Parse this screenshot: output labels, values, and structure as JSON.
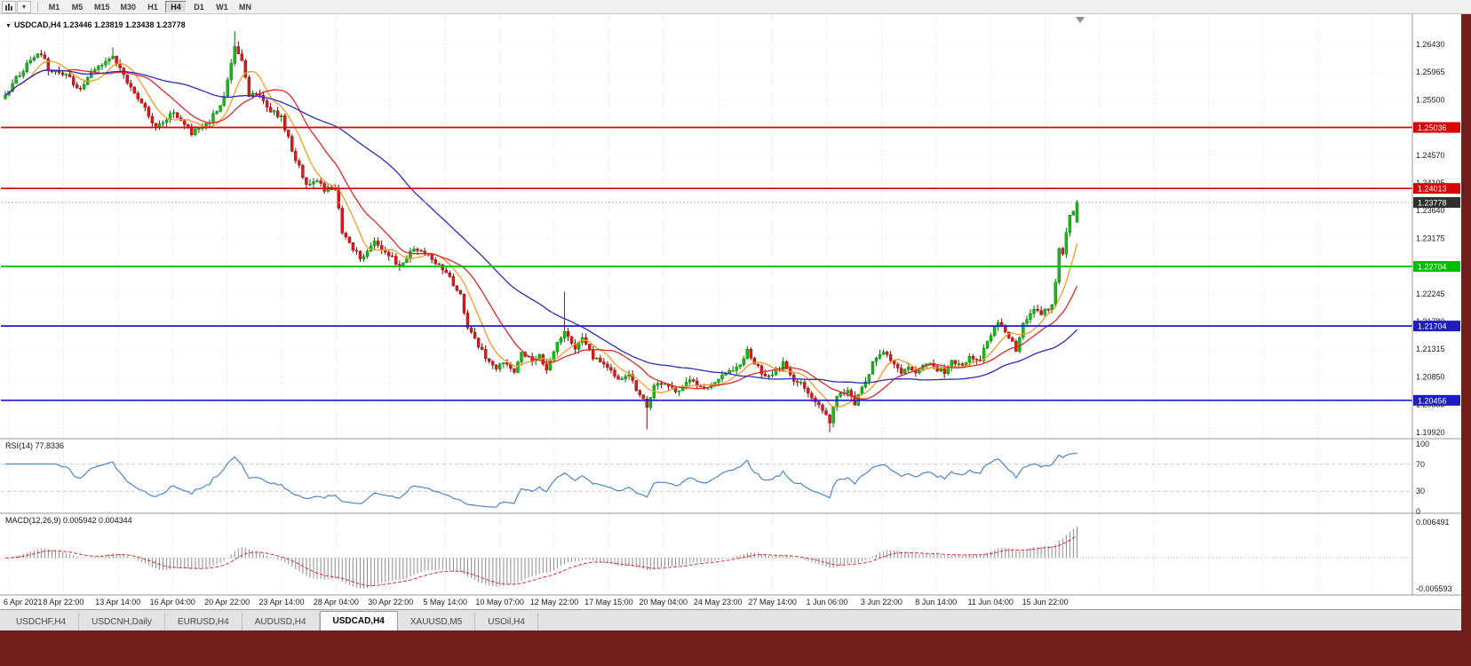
{
  "toolbar": {
    "timeframes": [
      "M1",
      "M5",
      "M15",
      "M30",
      "H1",
      "H4",
      "D1",
      "W1",
      "MN"
    ],
    "active_timeframe": "H4"
  },
  "chart_header": {
    "collapse_icon": "▼",
    "title": "USDCAD,H4  1.23446 1.23819 1.23438 1.23778"
  },
  "rsi_panel": {
    "label": "RSI(14) 77.8336",
    "current": 77.8336,
    "axis_values": [
      100,
      70,
      30,
      0
    ],
    "level_lines": [
      70,
      30
    ],
    "line_color": "#4d86c8"
  },
  "macd_panel": {
    "label": "MACD(12,26,9) 0.005942 0.004344",
    "macd_value": 0.005942,
    "signal_value": 0.004344,
    "axis_max": "0.006491",
    "axis_min": "-0.005593",
    "histogram_color": "#8c8c8c",
    "signal_color": "#e03030"
  },
  "price_axis": {
    "labels": [
      "1.26430",
      "1.25965",
      "1.25500",
      "1.25035",
      "1.24570",
      "1.24105",
      "1.23640",
      "1.23175",
      "1.22710",
      "1.22245",
      "1.21780",
      "1.21315",
      "1.20850",
      "1.20385",
      "1.19920"
    ]
  },
  "time_axis": {
    "labels": [
      "6 Apr 2021",
      "8 Apr 22:00",
      "13 Apr 14:00",
      "16 Apr 04:00",
      "20 Apr 22:00",
      "23 Apr 14:00",
      "28 Apr 04:00",
      "30 Apr 22:00",
      "5 May 14:00",
      "10 May 07:00",
      "12 May 22:00",
      "17 May 15:00",
      "20 May 04:00",
      "24 May 23:00",
      "27 May 14:00",
      "1 Jun 06:00",
      "3 Jun 22:00",
      "8 Jun 14:00",
      "11 Jun 04:00",
      "15 Jun 22:00"
    ]
  },
  "price_marker": {
    "value": 1.23778,
    "label": "1.23778",
    "bg": "#2f2f2f"
  },
  "hlines": [
    {
      "value": 1.25036,
      "label": "1.25036",
      "color": "#dd0000",
      "kind": "resistance"
    },
    {
      "value": 1.24013,
      "label": "1.24013",
      "color": "#dd0000",
      "kind": "resistance"
    },
    {
      "value": 1.22704,
      "label": "1.22704",
      "color": "#00bf00",
      "kind": "level"
    },
    {
      "value": 1.21704,
      "label": "1.21704",
      "color": "#1d1dc0",
      "kind": "support"
    },
    {
      "value": 1.20456,
      "label": "1.20456",
      "color": "#1d1dc0",
      "kind": "support"
    }
  ],
  "symbol_tabs": {
    "tabs": [
      "USDCHF,H4",
      "USDCNH,Daily",
      "EURUSD,H4",
      "AUDUSD,H4",
      "USDCAD,H4",
      "XAUUSD,M5",
      "USOil,H4"
    ],
    "active": "USDCAD,H4"
  },
  "chart_data": {
    "type": "candlestick",
    "symbol": "USDCAD",
    "timeframe": "H4",
    "title": "USDCAD,H4",
    "ohlc": {
      "open": 1.23446,
      "high": 1.23819,
      "low": 1.23438,
      "close": 1.23778
    },
    "x_range": [
      "6 Apr 2021",
      "16 Jun 2021"
    ],
    "ylim": [
      1.1983,
      1.2692
    ],
    "candle_count": 300,
    "seed": 12,
    "noise": 0.0009,
    "wick": 0.0008,
    "up_color": "#0fbf0f",
    "up_stroke": "#056a05",
    "down_color": "#e41616",
    "down_stroke": "#7a0808",
    "price_keypoints": [
      [
        0,
        1.256
      ],
      [
        6,
        1.261
      ],
      [
        10,
        1.263
      ],
      [
        12,
        1.26
      ],
      [
        17,
        1.259
      ],
      [
        21,
        1.2565
      ],
      [
        24,
        1.26
      ],
      [
        30,
        1.2625
      ],
      [
        34,
        1.258
      ],
      [
        38,
        1.2545
      ],
      [
        42,
        1.2505
      ],
      [
        47,
        1.253
      ],
      [
        52,
        1.2495
      ],
      [
        57,
        1.2515
      ],
      [
        61,
        1.2555
      ],
      [
        64,
        1.264
      ],
      [
        66,
        1.262
      ],
      [
        68,
        1.2555
      ],
      [
        71,
        1.256
      ],
      [
        73,
        1.2535
      ],
      [
        77,
        1.252
      ],
      [
        81,
        1.245
      ],
      [
        84,
        1.2408
      ],
      [
        87,
        1.2415
      ],
      [
        89,
        1.24
      ],
      [
        92,
        1.2398
      ],
      [
        94,
        1.233
      ],
      [
        97,
        1.23
      ],
      [
        99,
        1.2285
      ],
      [
        103,
        1.231
      ],
      [
        107,
        1.2292
      ],
      [
        110,
        1.227
      ],
      [
        114,
        1.2302
      ],
      [
        118,
        1.2288
      ],
      [
        122,
        1.2268
      ],
      [
        124,
        1.2252
      ],
      [
        127,
        1.222
      ],
      [
        129,
        1.217
      ],
      [
        132,
        1.2135
      ],
      [
        134,
        1.212
      ],
      [
        137,
        1.2102
      ],
      [
        139,
        1.2112
      ],
      [
        142,
        1.209
      ],
      [
        144,
        1.213
      ],
      [
        147,
        1.2112
      ],
      [
        149,
        1.212
      ],
      [
        151,
        1.21
      ],
      [
        154,
        1.2142
      ],
      [
        156,
        1.2165
      ],
      [
        159,
        1.213
      ],
      [
        161,
        1.215
      ],
      [
        164,
        1.2118
      ],
      [
        166,
        1.2108
      ],
      [
        169,
        1.2098
      ],
      [
        171,
        1.2082
      ],
      [
        174,
        1.209
      ],
      [
        176,
        1.2062
      ],
      [
        179,
        1.2035
      ],
      [
        181,
        1.2068
      ],
      [
        184,
        1.2078
      ],
      [
        187,
        1.206
      ],
      [
        191,
        1.208
      ],
      [
        195,
        1.2062
      ],
      [
        197,
        1.2072
      ],
      [
        201,
        1.209
      ],
      [
        205,
        1.2108
      ],
      [
        207,
        1.2128
      ],
      [
        210,
        1.21
      ],
      [
        212,
        1.2082
      ],
      [
        215,
        1.2092
      ],
      [
        217,
        1.2108
      ],
      [
        220,
        1.208
      ],
      [
        222,
        1.2072
      ],
      [
        225,
        1.2052
      ],
      [
        227,
        1.2042
      ],
      [
        230,
        1.2012
      ],
      [
        232,
        1.2052
      ],
      [
        235,
        1.2062
      ],
      [
        237,
        1.2042
      ],
      [
        240,
        1.2078
      ],
      [
        242,
        1.2108
      ],
      [
        245,
        1.2128
      ],
      [
        247,
        1.2112
      ],
      [
        250,
        1.2092
      ],
      [
        252,
        1.2102
      ],
      [
        254,
        1.2092
      ],
      [
        257,
        1.2108
      ],
      [
        259,
        1.21
      ],
      [
        262,
        1.2092
      ],
      [
        264,
        1.211
      ],
      [
        267,
        1.21
      ],
      [
        269,
        1.2118
      ],
      [
        272,
        1.211
      ],
      [
        274,
        1.2148
      ],
      [
        277,
        1.2178
      ],
      [
        279,
        1.216
      ],
      [
        282,
        1.2132
      ],
      [
        284,
        1.2178
      ],
      [
        287,
        1.22
      ],
      [
        289,
        1.2192
      ],
      [
        292,
        1.2202
      ],
      [
        293,
        1.2248
      ],
      [
        294,
        1.2298
      ],
      [
        295,
        1.2288
      ],
      [
        296,
        1.233
      ],
      [
        297,
        1.2355
      ],
      [
        299,
        1.2378
      ]
    ],
    "spikes": [
      {
        "i": 30,
        "high": 1.2638
      },
      {
        "i": 63,
        "high": 1.26
      },
      {
        "i": 64,
        "high": 1.2665
      },
      {
        "i": 65,
        "high": 1.2648
      },
      {
        "i": 156,
        "high": 1.2228
      },
      {
        "i": 179,
        "low": 1.1997
      },
      {
        "i": 230,
        "low": 1.1992
      }
    ],
    "last": {
      "open": 1.23446,
      "high": 1.23819,
      "low": 1.23438,
      "close": 1.23778
    },
    "moving_averages": [
      {
        "period": 8,
        "color": "#f59a23"
      },
      {
        "period": 18,
        "color": "#e02828"
      },
      {
        "period": 48,
        "color": "#2b2bbe"
      }
    ]
  }
}
